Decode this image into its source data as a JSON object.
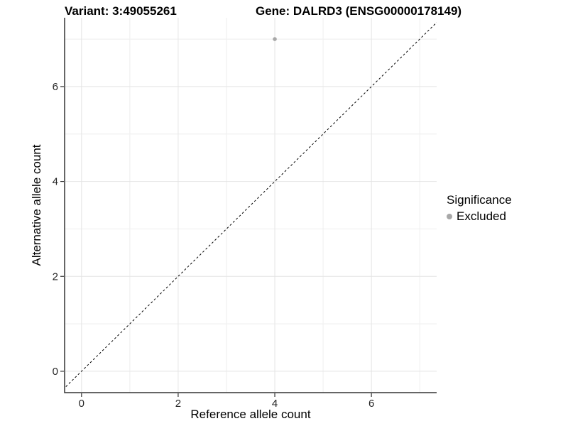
{
  "titles": {
    "variant": "Variant: 3:49055261",
    "gene": "Gene: DALRD3 (ENSG00000178149)"
  },
  "axes": {
    "x_label": "Reference allele count",
    "y_label": "Alternative allele count"
  },
  "legend": {
    "title": "Significance",
    "items": [
      {
        "label": "Excluded",
        "color": "#a8a8a8"
      }
    ]
  },
  "chart_data": {
    "type": "scatter",
    "title": "Variant: 3:49055261 | Gene: DALRD3 (ENSG00000178149)",
    "xlabel": "Reference allele count",
    "ylabel": "Alternative allele count",
    "xlim": [
      -0.35,
      7.35
    ],
    "ylim": [
      -0.45,
      7.45
    ],
    "x_ticks": [
      0,
      2,
      4,
      6
    ],
    "y_ticks": [
      0,
      2,
      4,
      6
    ],
    "x_minor_breaks": [
      1,
      3,
      5,
      7
    ],
    "y_minor_breaks": [
      1,
      3,
      5,
      7
    ],
    "grid": true,
    "legend_position": "right",
    "series": [
      {
        "name": "Excluded",
        "color": "#a8a8a8",
        "points": [
          {
            "x": 4,
            "y": 7
          }
        ]
      }
    ],
    "abline": {
      "description": "identity line y = x, dashed",
      "slope": 1,
      "intercept": 0,
      "x1": -0.45,
      "y1": -0.45,
      "x2": 7.45,
      "y2": 7.45
    },
    "colors": {
      "grid_major": "#e4e4e4",
      "grid_minor": "#eeeeee",
      "axis": "#333333",
      "abline": "#000000",
      "point": "#a8a8a8"
    }
  }
}
